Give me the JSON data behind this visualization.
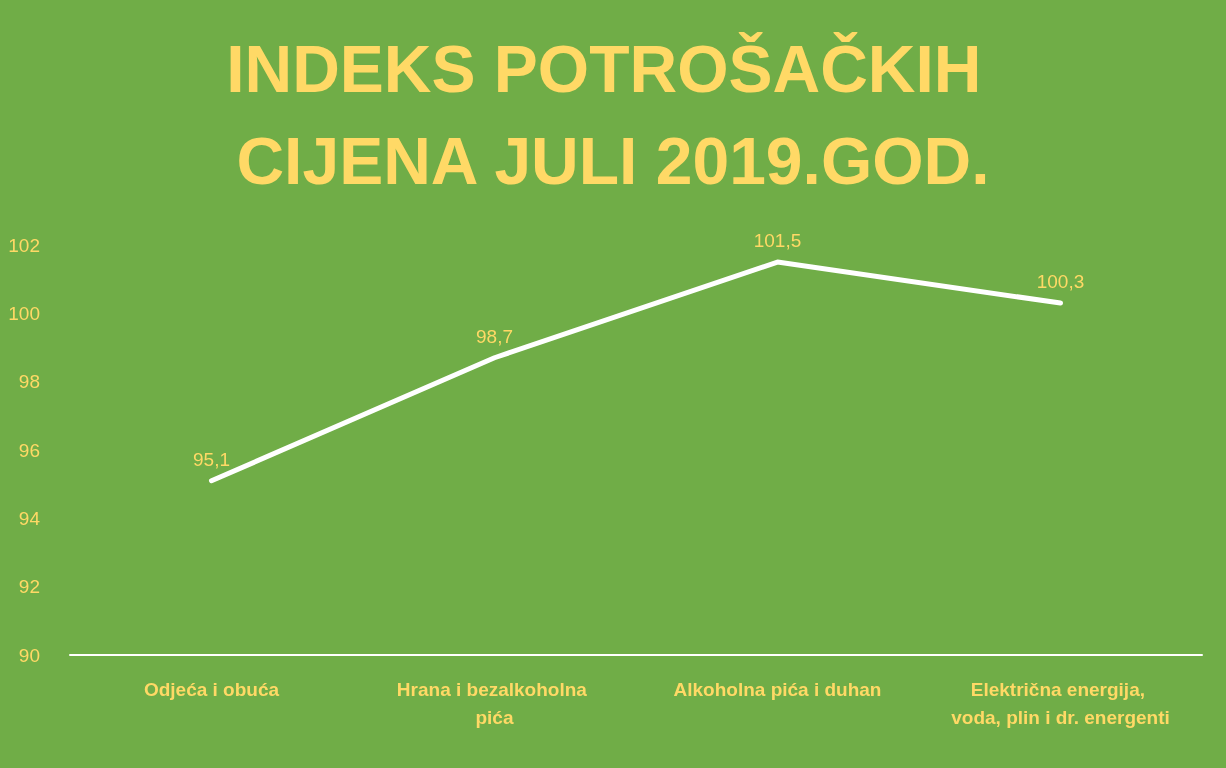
{
  "chart_data": {
    "type": "line",
    "title": "INDEKS POTROŠAČKIH CIJENA JULI 2019.GOD.",
    "categories": [
      "Odjeća i obuća",
      "Hrana i bezalkoholna pića",
      "Alkoholna pića i duhan",
      "Električna energija, voda, plin i dr. energenti"
    ],
    "series": [
      {
        "color": "#ffffff",
        "values": [
          95.1,
          98.7,
          101.5,
          100.3
        ],
        "value_labels": [
          "95,1",
          "98,7",
          "101,5",
          "100,3"
        ]
      }
    ],
    "ylim": [
      90,
      102
    ],
    "yticks": [
      90,
      92,
      94,
      96,
      98,
      100,
      102
    ],
    "grid": false,
    "marker": "none",
    "line_style": "solid"
  }
}
